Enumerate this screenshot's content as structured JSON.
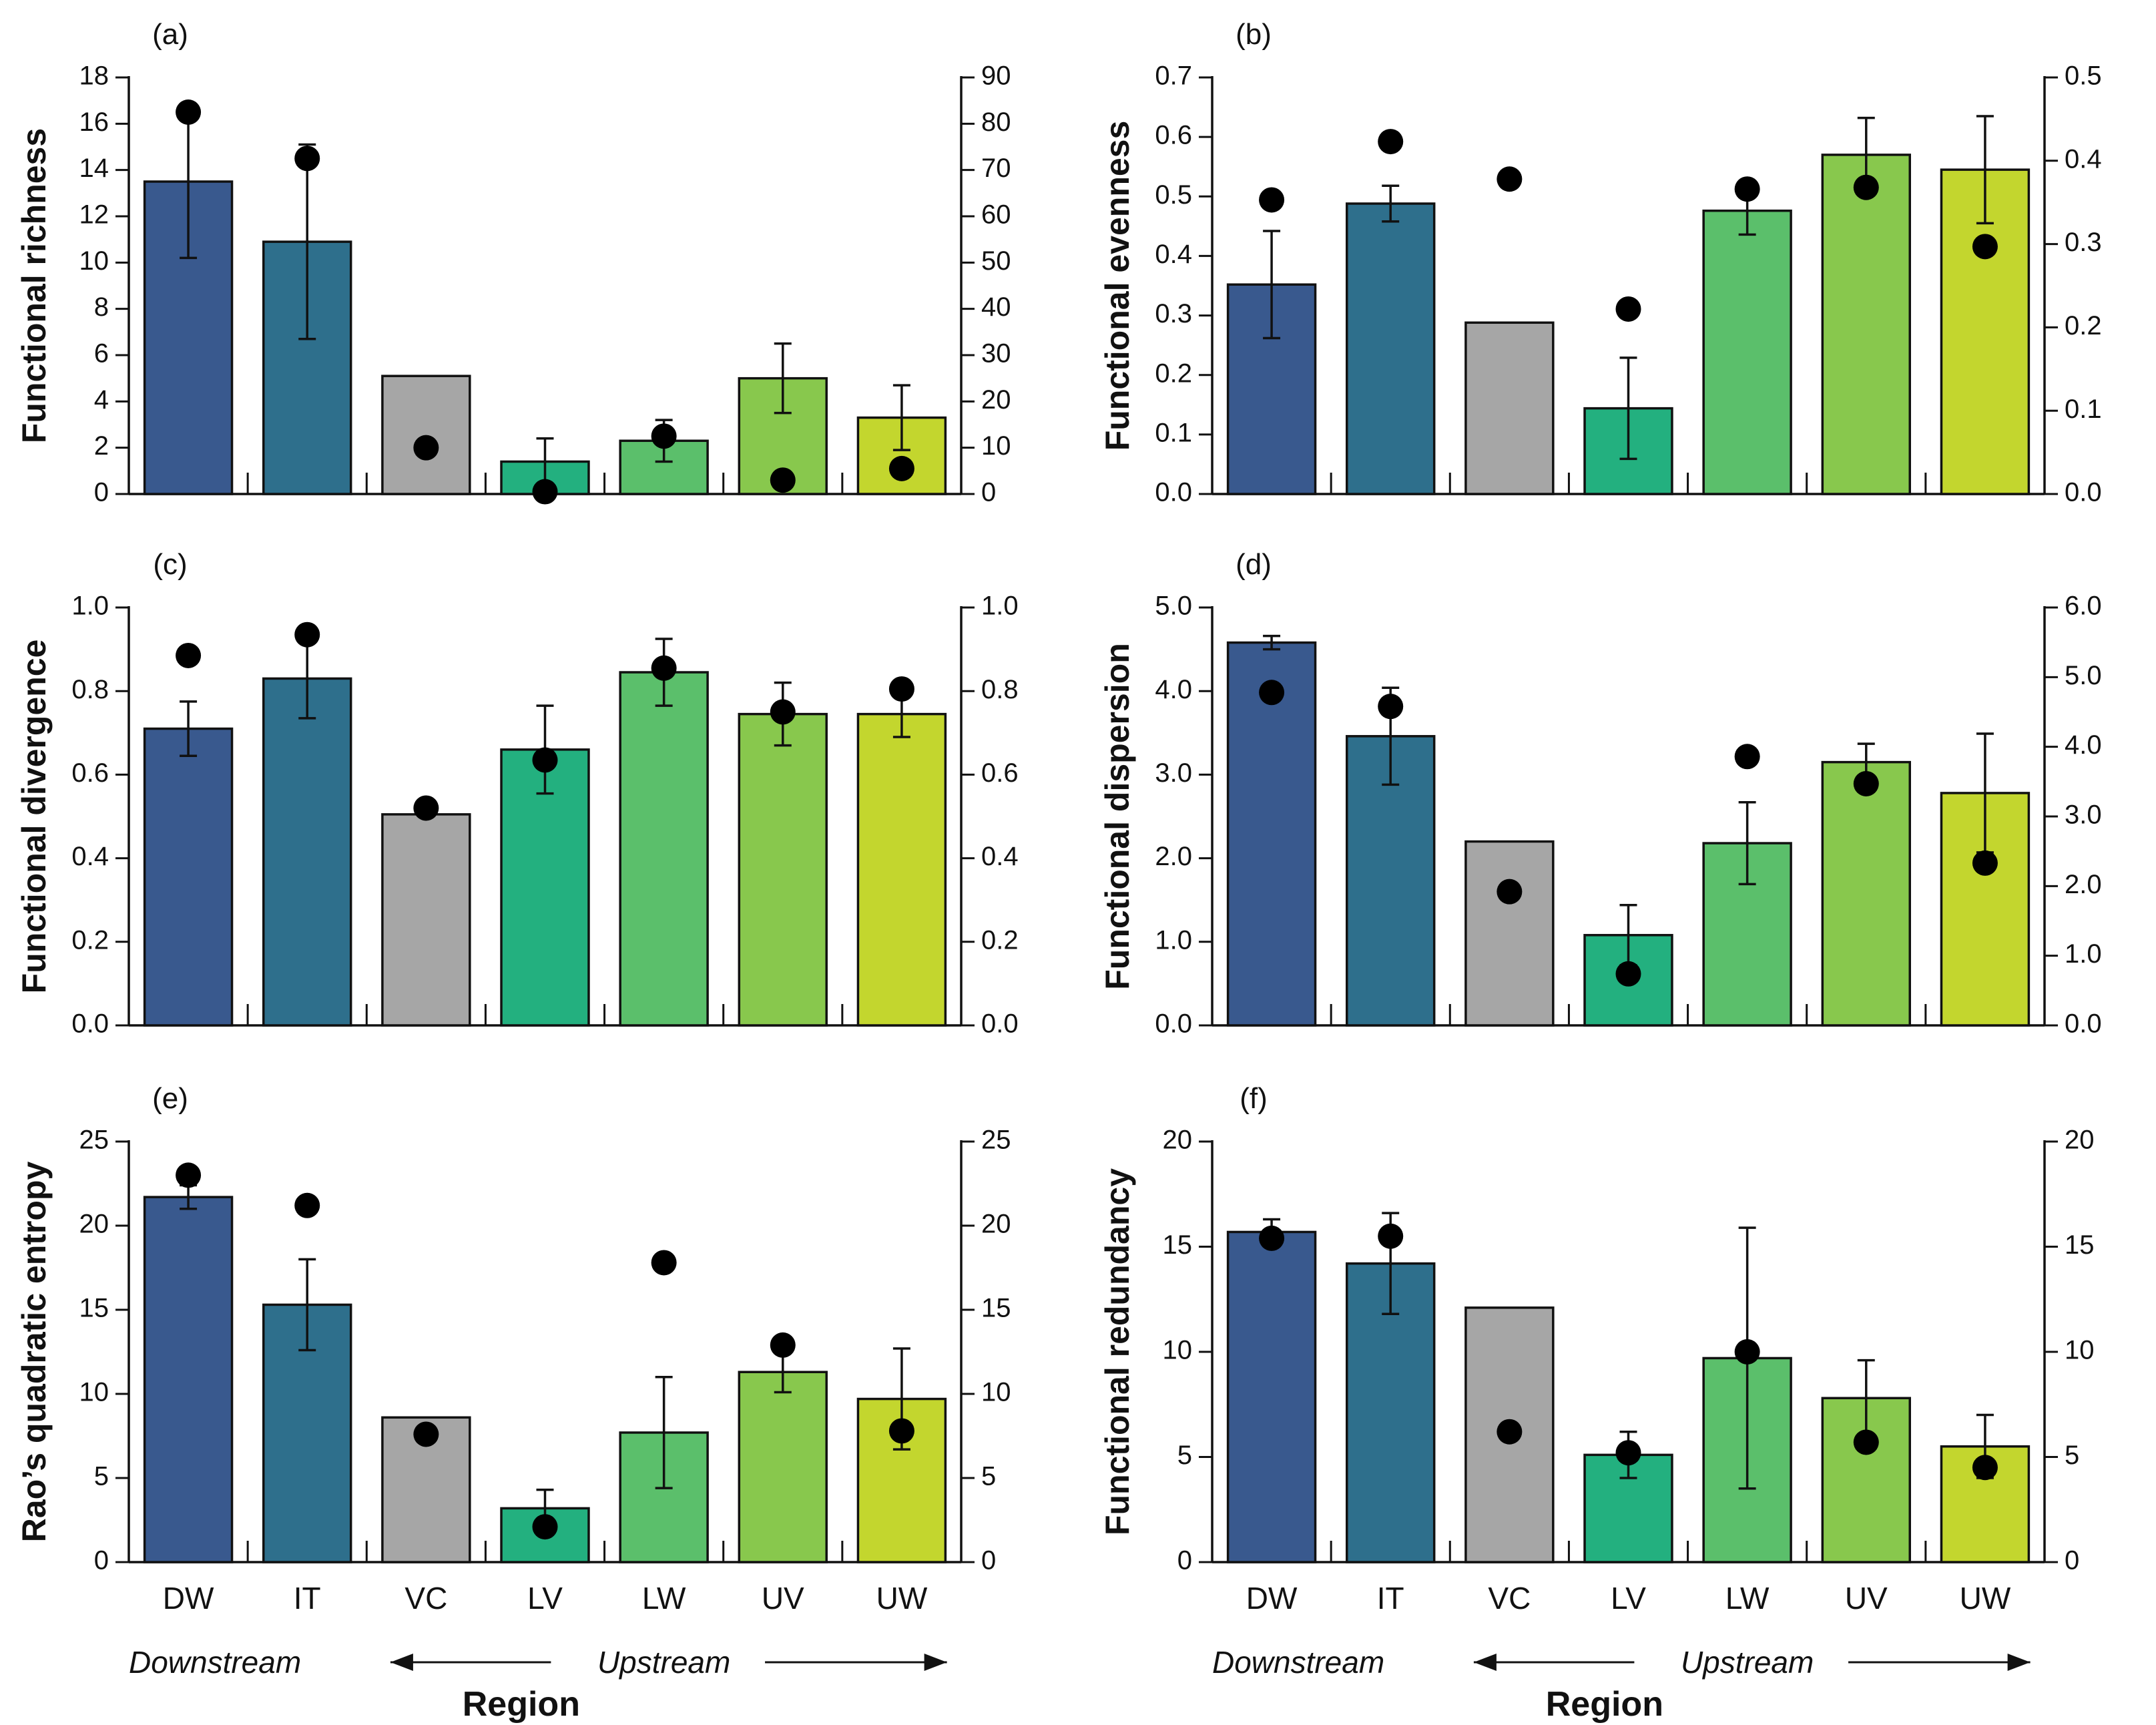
{
  "figure": {
    "categories": [
      "DW",
      "IT",
      "VC",
      "LV",
      "LW",
      "UV",
      "UW"
    ],
    "bar_colors": [
      "#39598e",
      "#2e6f8c",
      "#a6a6a6",
      "#23b07f",
      "#5bbf6b",
      "#88c84d",
      "#c3d62e"
    ],
    "direction": {
      "downstream": "Downstream",
      "upstream": "Upstream",
      "region": "Region"
    }
  },
  "chart_data": [
    {
      "type": "bar",
      "panel": "(a)",
      "ylabel": "Functional richness",
      "categories": [
        "DW",
        "IT",
        "VC",
        "LV",
        "LW",
        "UV",
        "UW"
      ],
      "ylim": [
        0,
        18
      ],
      "yticks": [
        0,
        2,
        4,
        6,
        8,
        10,
        12,
        14,
        16,
        18
      ],
      "ytick_labels": [
        "0",
        "2",
        "4",
        "6",
        "8",
        "10",
        "12",
        "14",
        "16",
        "18"
      ],
      "y2lim": [
        0,
        90
      ],
      "y2ticks": [
        0,
        10,
        20,
        30,
        40,
        50,
        60,
        70,
        80,
        90
      ],
      "y2tick_labels": [
        "0",
        "10",
        "20",
        "30",
        "40",
        "50",
        "60",
        "70",
        "80",
        "90"
      ],
      "series": [
        {
          "name": "bar_mean",
          "values": [
            13.5,
            10.9,
            5.1,
            1.4,
            2.3,
            5.0,
            3.3
          ],
          "error": [
            3.3,
            4.2,
            0,
            1.0,
            0.9,
            1.5,
            1.4
          ]
        },
        {
          "name": "points_right_axis",
          "values": [
            82.5,
            72.5,
            10,
            0.5,
            12.5,
            3,
            5.5
          ]
        }
      ]
    },
    {
      "type": "bar",
      "panel": "(b)",
      "ylabel": "Functional evenness",
      "categories": [
        "DW",
        "IT",
        "VC",
        "LV",
        "LW",
        "UV",
        "UW"
      ],
      "ylim": [
        0,
        0.7
      ],
      "yticks": [
        0,
        0.1,
        0.2,
        0.3,
        0.4,
        0.5,
        0.6,
        0.7
      ],
      "ytick_labels": [
        "0.0",
        "0.1",
        "0.2",
        "0.3",
        "0.4",
        "0.5",
        "0.6",
        "0.7"
      ],
      "y2lim": [
        0,
        0.5
      ],
      "y2ticks": [
        0,
        0.1,
        0.2,
        0.3,
        0.4,
        0.5
      ],
      "y2tick_labels": [
        "0.0",
        "0.1",
        "0.2",
        "0.3",
        "0.4",
        "0.5"
      ],
      "series": [
        {
          "name": "bar_mean",
          "values": [
            0.352,
            0.488,
            0.288,
            0.144,
            0.476,
            0.57,
            0.545
          ],
          "error": [
            0.09,
            0.03,
            0,
            0.085,
            0.04,
            0.062,
            0.09
          ]
        },
        {
          "name": "points_right_axis",
          "values": [
            0.353,
            0.423,
            0.378,
            0.222,
            0.366,
            0.368,
            0.297
          ]
        }
      ]
    },
    {
      "type": "bar",
      "panel": "(c)",
      "ylabel": "Functional divergence",
      "categories": [
        "DW",
        "IT",
        "VC",
        "LV",
        "LW",
        "UV",
        "UW"
      ],
      "ylim": [
        0,
        1.0
      ],
      "yticks": [
        0,
        0.2,
        0.4,
        0.6,
        0.8,
        1.0
      ],
      "ytick_labels": [
        "0.0",
        "0.2",
        "0.4",
        "0.6",
        "0.8",
        "1.0"
      ],
      "y2lim": [
        0,
        1.0
      ],
      "y2ticks": [
        0,
        0.2,
        0.4,
        0.6,
        0.8,
        1.0
      ],
      "y2tick_labels": [
        "0.0",
        "0.2",
        "0.4",
        "0.6",
        "0.8",
        "1.0"
      ],
      "series": [
        {
          "name": "bar_mean",
          "values": [
            0.71,
            0.83,
            0.505,
            0.66,
            0.845,
            0.745,
            0.745
          ],
          "error": [
            0.065,
            0.095,
            0,
            0.105,
            0.08,
            0.075,
            0.055
          ]
        },
        {
          "name": "points_right_axis",
          "values": [
            0.885,
            0.935,
            0.52,
            0.635,
            0.855,
            0.75,
            0.805
          ]
        }
      ]
    },
    {
      "type": "bar",
      "panel": "(d)",
      "ylabel": "Functional dispersion",
      "categories": [
        "DW",
        "IT",
        "VC",
        "LV",
        "LW",
        "UV",
        "UW"
      ],
      "ylim": [
        0,
        5.0
      ],
      "yticks": [
        0,
        1,
        2,
        3,
        4,
        5
      ],
      "ytick_labels": [
        "0.0",
        "1.0",
        "2.0",
        "3.0",
        "4.0",
        "5.0"
      ],
      "y2lim": [
        0,
        6.0
      ],
      "y2ticks": [
        0,
        1,
        2,
        3,
        4,
        5,
        6
      ],
      "y2tick_labels": [
        "0.0",
        "1.0",
        "2.0",
        "3.0",
        "4.0",
        "5.0",
        "6.0"
      ],
      "series": [
        {
          "name": "bar_mean",
          "values": [
            4.58,
            3.46,
            2.2,
            1.08,
            2.18,
            3.15,
            2.78
          ],
          "error": [
            0.08,
            0.58,
            0,
            0.36,
            0.49,
            0.22,
            0.71
          ]
        },
        {
          "name": "points_right_axis",
          "values": [
            4.78,
            4.58,
            1.92,
            0.74,
            3.86,
            3.47,
            2.33
          ]
        }
      ]
    },
    {
      "type": "bar",
      "panel": "(e)",
      "ylabel": "Rao’s quadratic entropy",
      "categories": [
        "DW",
        "IT",
        "VC",
        "LV",
        "LW",
        "UV",
        "UW"
      ],
      "ylim": [
        0,
        25
      ],
      "yticks": [
        0,
        5,
        10,
        15,
        20,
        25
      ],
      "ytick_labels": [
        "0",
        "5",
        "10",
        "15",
        "20",
        "25"
      ],
      "y2lim": [
        0,
        25
      ],
      "y2ticks": [
        0,
        5,
        10,
        15,
        20,
        25
      ],
      "y2tick_labels": [
        "0",
        "5",
        "10",
        "15",
        "20",
        "25"
      ],
      "series": [
        {
          "name": "bar_mean",
          "values": [
            21.7,
            15.3,
            8.6,
            3.2,
            7.7,
            11.3,
            9.7
          ],
          "error": [
            0.7,
            2.7,
            0,
            1.1,
            3.3,
            1.2,
            3.0
          ]
        },
        {
          "name": "points_right_axis",
          "values": [
            23.0,
            21.2,
            7.6,
            2.1,
            17.8,
            12.9,
            7.8
          ]
        }
      ]
    },
    {
      "type": "bar",
      "panel": "(f)",
      "ylabel": "Functional redundancy",
      "categories": [
        "DW",
        "IT",
        "VC",
        "LV",
        "LW",
        "UV",
        "UW"
      ],
      "ylim": [
        0,
        20
      ],
      "yticks": [
        0,
        5,
        10,
        15,
        20
      ],
      "ytick_labels": [
        "0",
        "5",
        "10",
        "15",
        "20"
      ],
      "y2lim": [
        0,
        20
      ],
      "y2ticks": [
        0,
        5,
        10,
        15,
        20
      ],
      "y2tick_labels": [
        "0",
        "5",
        "10",
        "15",
        "20"
      ],
      "series": [
        {
          "name": "bar_mean",
          "values": [
            15.7,
            14.2,
            12.1,
            5.1,
            9.7,
            7.8,
            5.5
          ],
          "error": [
            0.6,
            2.4,
            0,
            1.1,
            6.2,
            1.8,
            1.5
          ]
        },
        {
          "name": "points_right_axis",
          "values": [
            15.4,
            15.5,
            6.2,
            5.2,
            10.0,
            5.7,
            4.5
          ]
        }
      ]
    }
  ]
}
